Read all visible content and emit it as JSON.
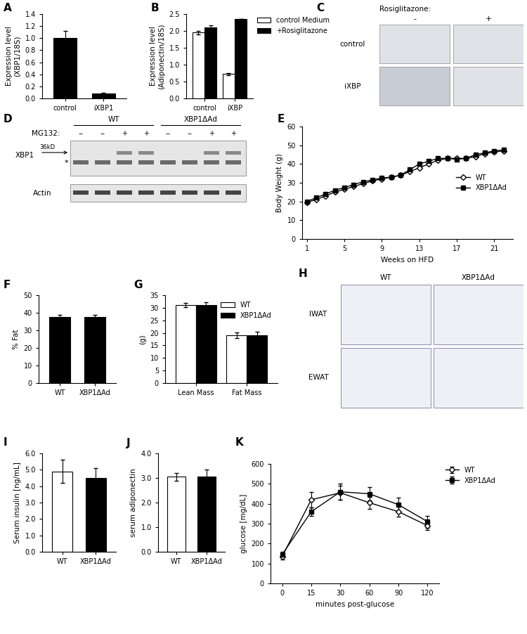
{
  "chart_data": [
    {
      "panel": "A",
      "type": "bar",
      "categories": [
        "control",
        "iXBP1"
      ],
      "values": [
        1.0,
        0.08
      ],
      "errors": [
        0.12,
        0.01
      ],
      "color": "#000000",
      "y_label": "Expression level\n(XBP1/18S)",
      "ylim": [
        0,
        1.4
      ],
      "yticks": [
        {
          "value": 0,
          "label": "0.0"
        },
        {
          "value": 0.2,
          "label": "0.2"
        },
        {
          "value": 0.4,
          "label": "0.4"
        },
        {
          "value": 0.6,
          "label": "0.6"
        },
        {
          "value": 0.8,
          "label": "0.8"
        },
        {
          "value": 1,
          "label": "1.0"
        },
        {
          "value": 1.2,
          "label": "1.2"
        },
        {
          "value": 1.4,
          "label": "1.4"
        }
      ]
    },
    {
      "panel": "B",
      "type": "bar",
      "categories": [
        "control",
        "iXBP"
      ],
      "series": [
        {
          "name": "control Medium",
          "color": "#ffffff",
          "values": [
            1.95,
            0.72
          ],
          "errors": [
            0.05,
            0.04
          ]
        },
        {
          "name": "+Rosiglitazone",
          "color": "#000000",
          "values": [
            2.1,
            2.35
          ],
          "errors": [
            0.07,
            0.0
          ]
        }
      ],
      "y_label": "Expression level\n(Adiponectin/18S)",
      "ylim": [
        0,
        2.5
      ],
      "yticks": [
        {
          "value": 0,
          "label": "0.0"
        },
        {
          "value": 0.5,
          "label": "0.5"
        },
        {
          "value": 1,
          "label": "1.0"
        },
        {
          "value": 1.5,
          "label": "1.5"
        },
        {
          "value": 2,
          "label": "2.0"
        },
        {
          "value": 2.5,
          "label": "2.5"
        }
      ],
      "legend": "right"
    },
    {
      "panel": "E",
      "type": "line",
      "x": [
        1,
        2,
        3,
        4,
        5,
        6,
        7,
        8,
        9,
        10,
        11,
        12,
        13,
        14,
        15,
        16,
        17,
        18,
        19,
        20,
        21,
        22
      ],
      "series": [
        {
          "name": "WT",
          "color": "#ffffff",
          "marker": "diamond",
          "values": [
            19.5,
            21,
            23,
            25,
            26.5,
            28,
            29.5,
            31,
            32,
            33,
            34,
            36,
            38,
            40,
            42,
            43,
            43,
            43,
            44,
            45.5,
            46.5,
            47
          ]
        },
        {
          "name": "XBP1ΔAd",
          "color": "#000000",
          "marker": "square",
          "values": [
            20,
            22,
            24,
            26,
            27.5,
            29,
            30.5,
            31.5,
            32.5,
            33,
            34,
            37,
            40,
            41.5,
            43,
            43,
            42.5,
            43,
            45,
            46,
            47,
            47.5
          ]
        }
      ],
      "x_label": "Weeks on HFD",
      "y_label": "Body Weight (g)",
      "xlim": [
        0.5,
        23
      ],
      "xticks": [
        1,
        5,
        9,
        13,
        17,
        21
      ],
      "ylim": [
        0,
        60
      ],
      "yticks": [
        0,
        10,
        20,
        30,
        40,
        50,
        60
      ],
      "legend": "center right"
    },
    {
      "panel": "F",
      "type": "bar",
      "categories": [
        "WT",
        "XBP1ΔAd"
      ],
      "values": [
        37.5,
        37.5
      ],
      "errors": [
        1.5,
        1.5
      ],
      "color": "#000000",
      "y_label": "% Fat",
      "ylim": [
        0,
        50
      ],
      "yticks": [
        0,
        10,
        20,
        30,
        40,
        50
      ]
    },
    {
      "panel": "G",
      "type": "bar",
      "categories": [
        "Lean Mass",
        "Fat Mass"
      ],
      "series": [
        {
          "name": "WT",
          "color": "#ffffff",
          "values": [
            31,
            19
          ],
          "errors": [
            0.8,
            1.2
          ]
        },
        {
          "name": "XBP1ΔAd",
          "color": "#000000",
          "values": [
            31,
            19
          ],
          "errors": [
            1.2,
            1.5
          ]
        }
      ],
      "y_label": "(g)",
      "ylim": [
        0,
        35
      ],
      "yticks": [
        0,
        5,
        10,
        15,
        20,
        25,
        30,
        35
      ],
      "legend": "upper right"
    },
    {
      "panel": "I",
      "type": "bar",
      "categories": [
        "WT",
        "XBP1ΔAd"
      ],
      "values": [
        4.9,
        4.5
      ],
      "errors": [
        0.7,
        0.6
      ],
      "colors": [
        "#ffffff",
        "#000000"
      ],
      "y_label": "Serum insulin [ng/mL]",
      "ylim": [
        0,
        6
      ],
      "yticks": [
        {
          "value": 0,
          "label": "0.0"
        },
        {
          "value": 1,
          "label": "1.0"
        },
        {
          "value": 2,
          "label": "2.0"
        },
        {
          "value": 3,
          "label": "3.0"
        },
        {
          "value": 4,
          "label": "4.0"
        },
        {
          "value": 5,
          "label": "5.0"
        },
        {
          "value": 6,
          "label": "6.0"
        }
      ]
    },
    {
      "panel": "J",
      "type": "bar",
      "categories": [
        "WT",
        "XBP1ΔAd"
      ],
      "values": [
        3.05,
        3.05
      ],
      "errors": [
        0.15,
        0.3
      ],
      "colors": [
        "#ffffff",
        "#000000"
      ],
      "y_label": "serum adiponectin",
      "ylim": [
        0,
        4
      ],
      "yticks": [
        {
          "value": 0,
          "label": "0.0"
        },
        {
          "value": 1,
          "label": "1.0"
        },
        {
          "value": 2,
          "label": "2.0"
        },
        {
          "value": 3,
          "label": "3.0"
        },
        {
          "value": 4,
          "label": "4.0"
        }
      ]
    },
    {
      "panel": "K",
      "type": "line",
      "categories": [
        "0",
        "15",
        "30",
        "60",
        "90",
        "120"
      ],
      "series": [
        {
          "name": "WT",
          "color": "#ffffff",
          "marker": "diamond",
          "values": [
            135,
            420,
            455,
            405,
            360,
            290
          ],
          "errors": [
            15,
            40,
            35,
            30,
            25,
            20
          ]
        },
        {
          "name": "XBP1ΔAd",
          "color": "#000000",
          "marker": "square",
          "values": [
            145,
            360,
            460,
            450,
            395,
            310
          ],
          "errors": [
            15,
            20,
            40,
            35,
            35,
            30
          ]
        }
      ],
      "x_label": "minutes post-glucose",
      "y_label": "glucose [mg/dL]",
      "ylim": [
        0,
        600
      ],
      "yticks": [
        0,
        100,
        200,
        300,
        400,
        500,
        600
      ],
      "legend": "right"
    }
  ],
  "images": [
    {
      "panel": "C",
      "type": "image",
      "header": "Rosiglitazone:",
      "columns": [
        "-",
        "+"
      ],
      "rows": [
        "control",
        "iXBP"
      ]
    },
    {
      "panel": "D",
      "type": "blot",
      "groups": [
        "WT",
        "XBP1ΔAd"
      ],
      "treatment": "MG132:",
      "lanes": [
        "--",
        "--",
        "+",
        "+",
        "--",
        "--",
        "+",
        "+"
      ],
      "rows": [
        "XBP1",
        "Actin"
      ],
      "size_marker": "36kD",
      "band_note": "*"
    },
    {
      "panel": "H",
      "type": "image",
      "columns": [
        "WT",
        "XBP1ΔAd"
      ],
      "rows": [
        "IWAT",
        "EWAT"
      ]
    }
  ]
}
